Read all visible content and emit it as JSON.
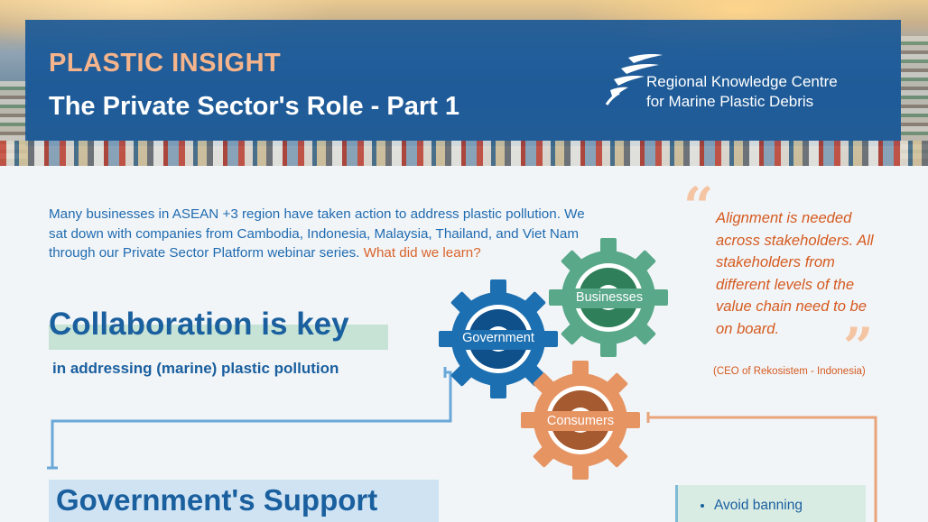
{
  "header": {
    "kicker": "PLASTIC INSIGHT",
    "title": "The Private Sector's Role - Part 1",
    "org_line1": "Regional Knowledge Centre",
    "org_line2": "for Marine Plastic Debris"
  },
  "intro": {
    "text": "Many businesses in ASEAN +3 region have taken action to address plastic pollution. We sat down with companies from Cambodia, Indonesia, Malaysia, Thailand, and Viet Nam through our Private Sector Platform webinar series.",
    "question": "What did we learn?"
  },
  "collaboration": {
    "title": "Collaboration is key",
    "subtitle": "in addressing (marine) plastic pollution"
  },
  "gears": {
    "government": "Government",
    "businesses": "Businesses",
    "consumers": "Consumers"
  },
  "quote": {
    "open_mark": "“",
    "close_mark": "”",
    "text": "Alignment is needed across stakeholders. All stakeholders from different levels of the value chain need to be on board.",
    "source": "(CEO of Rekosistem - Indonesia)"
  },
  "government_support": {
    "title": "Government's Support",
    "bullets": [
      "Avoid banning"
    ]
  },
  "colors": {
    "banner": "#125496",
    "kicker": "#f5b48b",
    "primary_text": "#1f6bb0",
    "accent": "#d9632a",
    "gear_government": "#1c6fb0",
    "gear_businesses": "#58a889",
    "gear_consumers": "#e79463",
    "connector_blue": "#6aa8d8",
    "connector_orange": "#e9a47a"
  }
}
